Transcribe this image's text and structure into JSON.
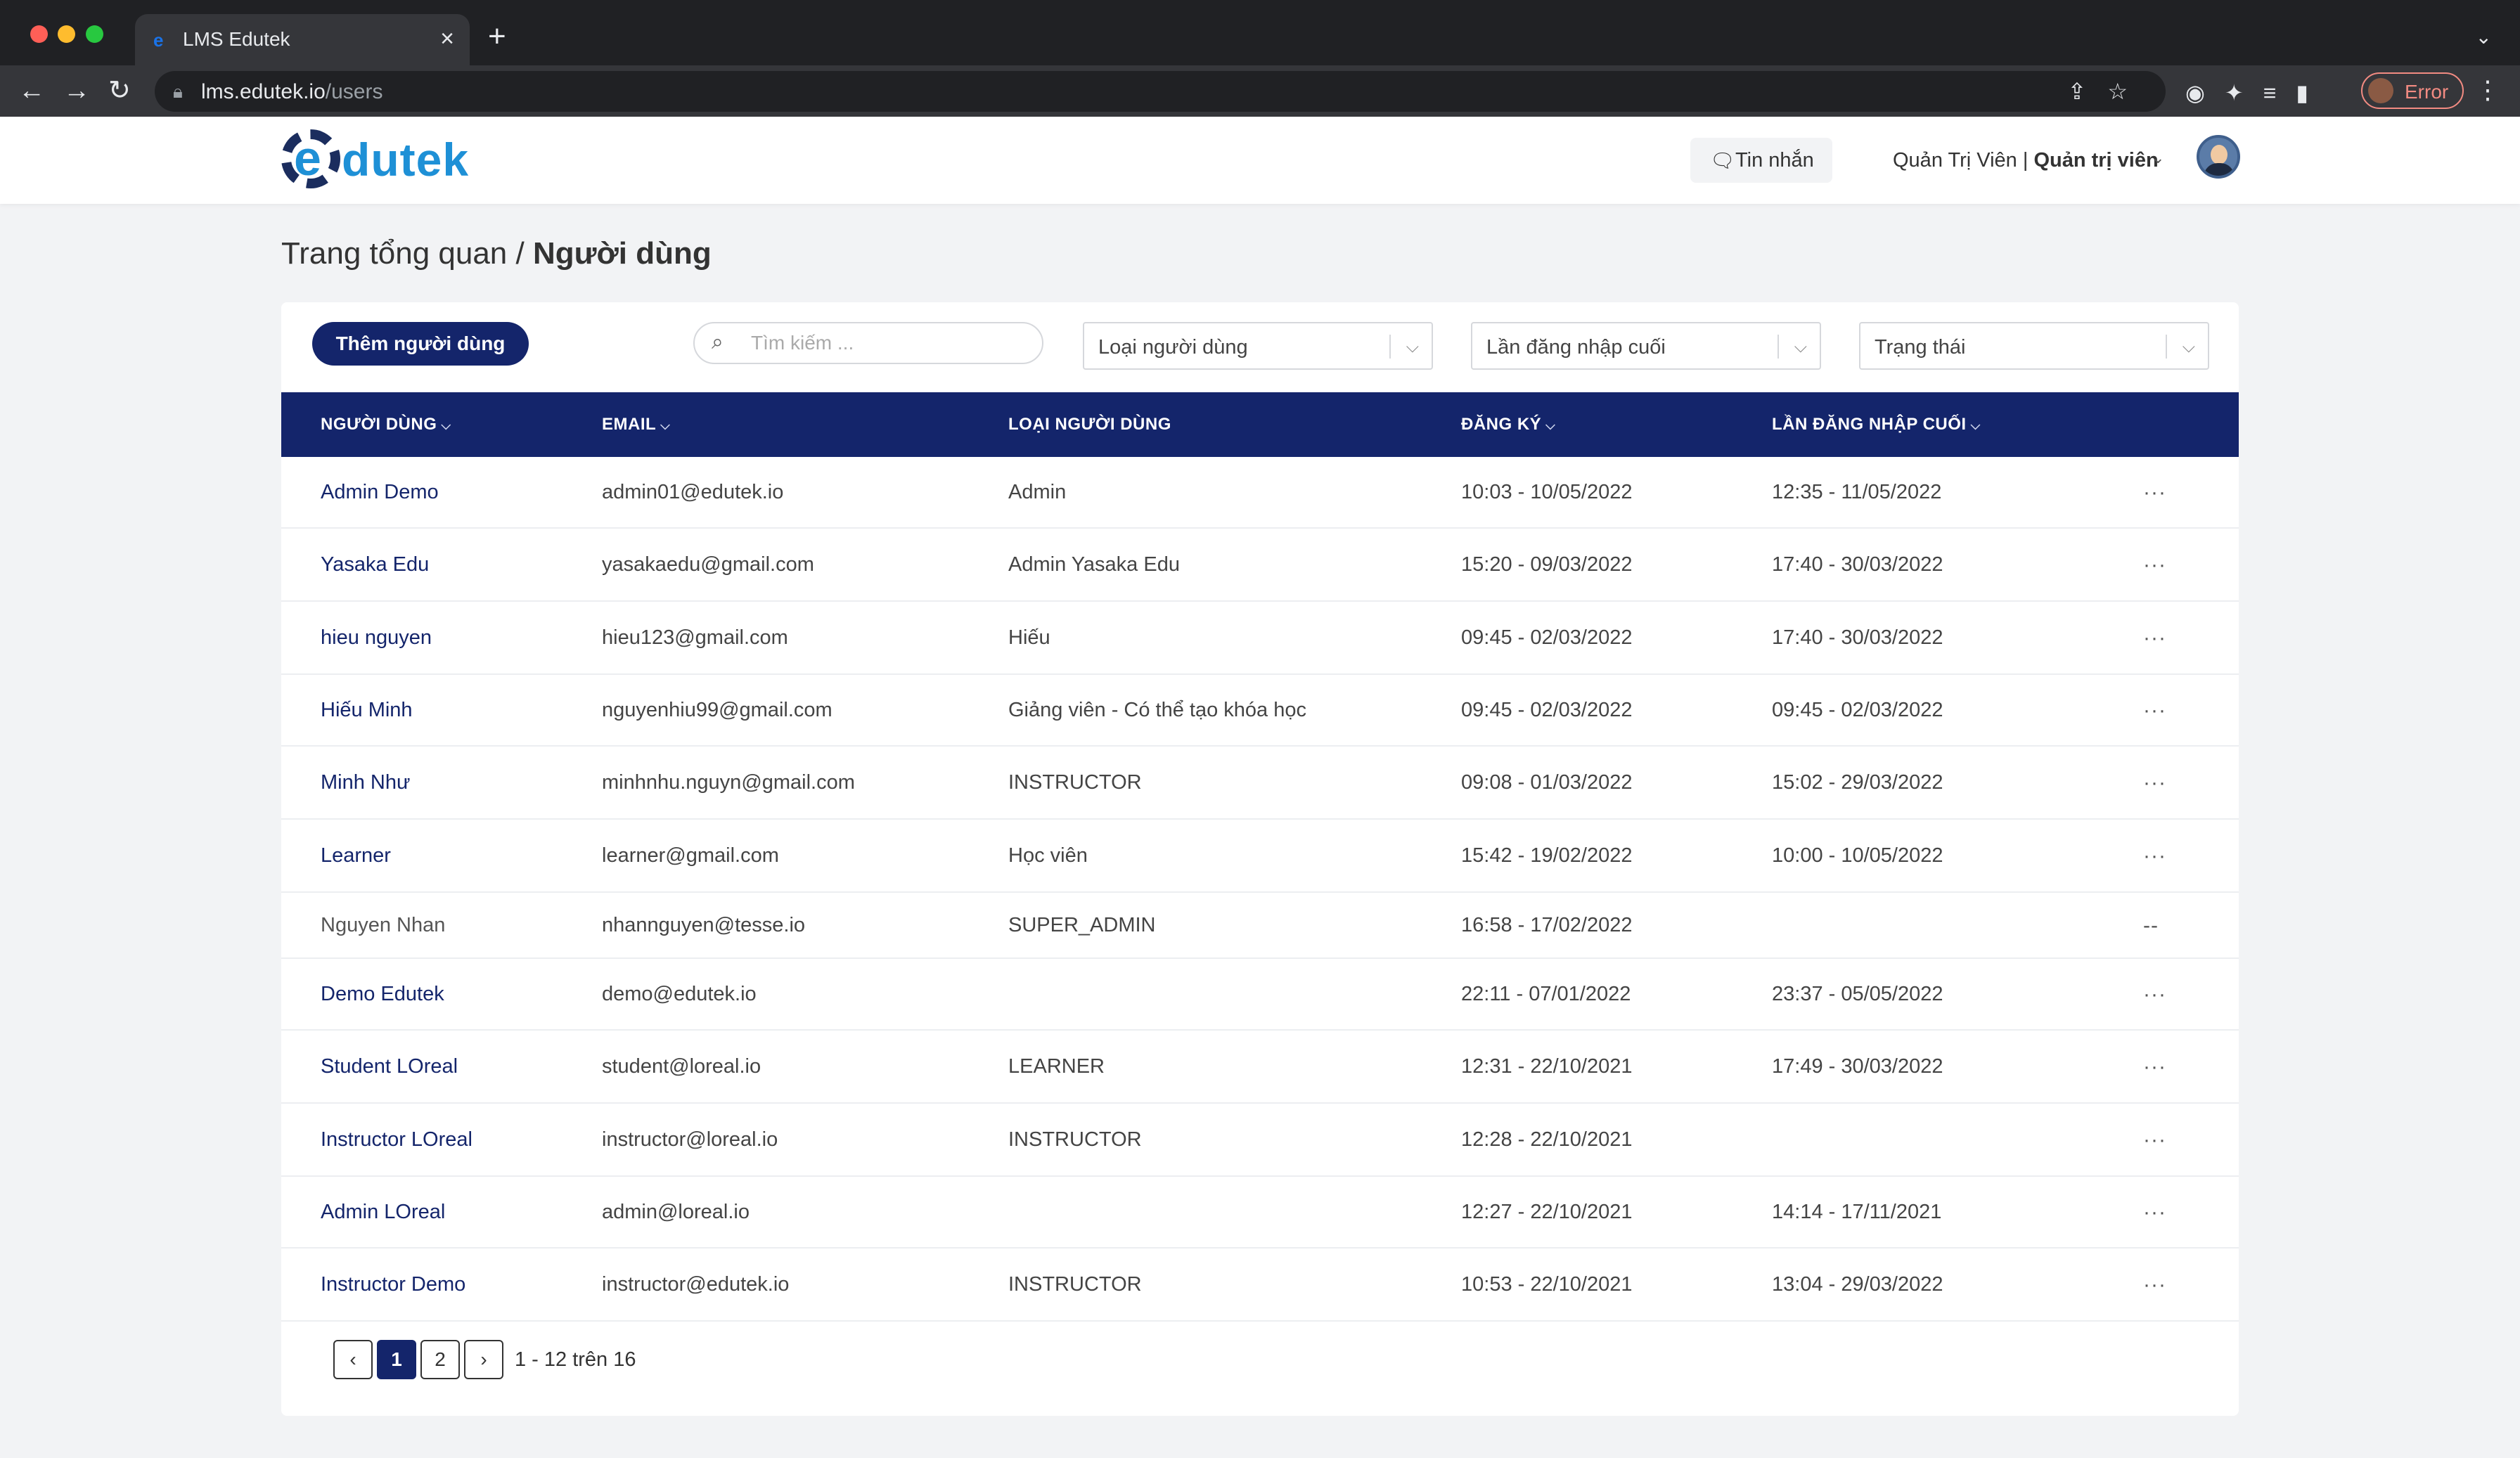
{
  "browser": {
    "tab_title": "LMS Edutek",
    "url_host": "lms.edutek.io",
    "url_path": "/users",
    "error_label": "Error"
  },
  "header": {
    "logo_letter": "e",
    "logo_text": "dutek",
    "messages_label": "Tin nhắn",
    "user_name": "Quản Trị Viên | ",
    "user_role": "Quản trị viên"
  },
  "breadcrumb": {
    "parent": "Trang tổng quan /",
    "current": "Người dùng"
  },
  "toolbar": {
    "add_label": "Thêm người dùng",
    "search_placeholder": "Tìm kiếm ...",
    "filter_user_type": "Loại người dùng",
    "filter_last_login": "Lần đăng nhập cuối",
    "filter_status": "Trạng thái"
  },
  "table": {
    "columns": {
      "user": "NGƯỜI DÙNG",
      "email": "EMAIL",
      "type": "LOẠI NGƯỜI DÙNG",
      "registered": "ĐĂNG KÝ",
      "last_login": "LẦN ĐĂNG NHẬP CUỐI"
    },
    "rows": [
      {
        "name": "Admin Demo",
        "email": "admin01@edutek.io",
        "type": "Admin",
        "registered": "10:03 - 10/05/2022",
        "last_login": "12:35 - 11/05/2022",
        "action": "···"
      },
      {
        "name": "Yasaka Edu",
        "email": "yasakaedu@gmail.com",
        "type": "Admin Yasaka Edu",
        "registered": "15:20 - 09/03/2022",
        "last_login": "17:40 - 30/03/2022",
        "action": "···"
      },
      {
        "name": "hieu nguyen",
        "email": "hieu123@gmail.com",
        "type": "Hiếu",
        "registered": "09:45 - 02/03/2022",
        "last_login": "17:40 - 30/03/2022",
        "action": "···"
      },
      {
        "name": "Hiếu Minh",
        "email": "nguyenhiu99@gmail.com",
        "type": "Giảng viên - Có thể tạo khóa học",
        "registered": "09:45 - 02/03/2022",
        "last_login": "09:45 - 02/03/2022",
        "action": "···"
      },
      {
        "name": "Minh Như",
        "email": "minhnhu.nguyn@gmail.com",
        "type": "INSTRUCTOR",
        "registered": "09:08 - 01/03/2022",
        "last_login": "15:02 - 29/03/2022",
        "action": "···"
      },
      {
        "name": "Learner",
        "email": "learner@gmail.com",
        "type": "Học viên",
        "registered": "15:42 - 19/02/2022",
        "last_login": "10:00 - 10/05/2022",
        "action": "···"
      },
      {
        "name": "Nguyen Nhan",
        "email": "nhannguyen@tesse.io",
        "type": "SUPER_ADMIN",
        "registered": "16:58 - 17/02/2022",
        "last_login": "",
        "action": "--"
      },
      {
        "name": "Demo Edutek",
        "email": "demo@edutek.io",
        "type": "",
        "registered": "22:11 - 07/01/2022",
        "last_login": "23:37 - 05/05/2022",
        "action": "···"
      },
      {
        "name": "Student LOreal",
        "email": "student@loreal.io",
        "type": "LEARNER",
        "registered": "12:31 - 22/10/2021",
        "last_login": "17:49 - 30/03/2022",
        "action": "···"
      },
      {
        "name": "Instructor LOreal",
        "email": "instructor@loreal.io",
        "type": "INSTRUCTOR",
        "registered": "12:28 - 22/10/2021",
        "last_login": "",
        "action": "···"
      },
      {
        "name": "Admin LOreal",
        "email": "admin@loreal.io",
        "type": "",
        "registered": "12:27 - 22/10/2021",
        "last_login": "14:14 - 17/11/2021",
        "action": "···"
      },
      {
        "name": "Instructor Demo",
        "email": "instructor@edutek.io",
        "type": "INSTRUCTOR",
        "registered": "10:53 - 22/10/2021",
        "last_login": "13:04 - 29/03/2022",
        "action": "···"
      }
    ]
  },
  "pagination": {
    "prev": "‹",
    "next": "›",
    "pages": [
      "1",
      "2"
    ],
    "info": "1 - 12 trên 16"
  }
}
